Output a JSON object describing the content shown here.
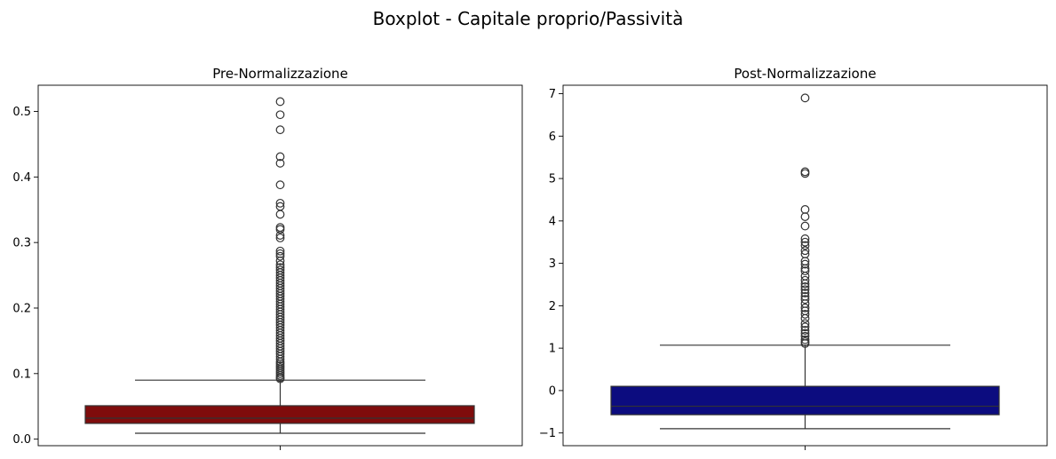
{
  "figure": {
    "suptitle": "Boxplot - Capitale proprio/Passività"
  },
  "chart_data": [
    {
      "type": "boxplot",
      "title": "Pre-Normalizzazione",
      "xlabel": "",
      "ylabel": "",
      "ylim": [
        -0.01,
        0.54
      ],
      "yticks": [
        0.0,
        0.1,
        0.2,
        0.3,
        0.4,
        0.5
      ],
      "ytick_labels": [
        "0.0",
        "0.1",
        "0.2",
        "0.3",
        "0.4",
        "0.5"
      ],
      "box_color": "#7f0c0c",
      "line_color": "#333333",
      "stats": {
        "whisker_low": 0.009,
        "q1": 0.024,
        "median": 0.032,
        "q3": 0.051,
        "whisker_high": 0.09
      },
      "outliers": [
        0.515,
        0.495,
        0.472,
        0.431,
        0.421,
        0.388,
        0.36,
        0.355,
        0.343,
        0.323,
        0.32,
        0.311,
        0.307,
        0.287,
        0.283,
        0.279,
        0.272,
        0.266,
        0.262,
        0.258,
        0.254,
        0.25,
        0.246,
        0.242,
        0.238,
        0.234,
        0.23,
        0.226,
        0.222,
        0.218,
        0.214,
        0.21,
        0.206,
        0.202,
        0.198,
        0.194,
        0.19,
        0.186,
        0.182,
        0.178,
        0.174,
        0.17,
        0.166,
        0.162,
        0.158,
        0.154,
        0.15,
        0.146,
        0.142,
        0.138,
        0.134,
        0.13,
        0.126,
        0.122,
        0.118,
        0.115,
        0.112,
        0.109,
        0.106,
        0.103,
        0.1,
        0.097,
        0.094,
        0.092
      ]
    },
    {
      "type": "boxplot",
      "title": "Post-Normalizzazione",
      "xlabel": "",
      "ylabel": "",
      "ylim": [
        -1.3,
        7.2
      ],
      "yticks": [
        -1,
        0,
        1,
        2,
        3,
        4,
        5,
        6,
        7
      ],
      "ytick_labels": [
        "−1",
        "0",
        "1",
        "2",
        "3",
        "4",
        "5",
        "6",
        "7"
      ],
      "box_color": "#0c0c7f",
      "line_color": "#333333",
      "stats": {
        "whisker_low": -0.9,
        "q1": -0.57,
        "median": -0.37,
        "q3": 0.1,
        "whisker_high": 1.07
      },
      "outliers": [
        6.9,
        5.16,
        5.12,
        4.27,
        4.1,
        3.88,
        3.58,
        3.5,
        3.42,
        3.3,
        3.22,
        3.05,
        2.98,
        2.88,
        2.82,
        2.7,
        2.6,
        2.52,
        2.45,
        2.38,
        2.3,
        2.22,
        2.15,
        2.05,
        1.95,
        1.88,
        1.8,
        1.7,
        1.58,
        1.5,
        1.42,
        1.35,
        1.28,
        1.2,
        1.15,
        1.11
      ]
    }
  ]
}
